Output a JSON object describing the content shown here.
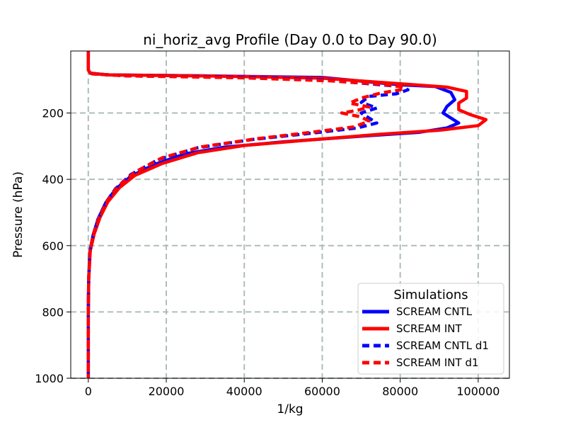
{
  "chart_data": {
    "type": "line",
    "title": "ni_horiz_avg Profile (Day 0.0 to Day 90.0)",
    "xlabel": "1/kg",
    "ylabel": "Pressure (hPa)",
    "xlim": [
      -4500,
      108000
    ],
    "ylim": [
      1000,
      13
    ],
    "y_inverted": true,
    "grid": true,
    "xticks": [
      0,
      20000,
      40000,
      60000,
      80000,
      100000
    ],
    "xtick_labels": [
      "0",
      "20000",
      "40000",
      "60000",
      "80000",
      "100000"
    ],
    "yticks": [
      200,
      400,
      600,
      800,
      1000
    ],
    "ytick_labels": [
      "200",
      "400",
      "600",
      "800",
      "1000"
    ],
    "legend": {
      "title": "Simulations",
      "position": "lower-right"
    },
    "series": [
      {
        "name": "SCREAM CNTL",
        "color": "#0000ff",
        "style": "solid",
        "points": [
          [
            0,
            13
          ],
          [
            0,
            70
          ],
          [
            500,
            80
          ],
          [
            5000,
            85
          ],
          [
            30000,
            88
          ],
          [
            60000,
            93
          ],
          [
            80000,
            115
          ],
          [
            89000,
            120
          ],
          [
            93000,
            138
          ],
          [
            94000,
            160
          ],
          [
            92000,
            180
          ],
          [
            91000,
            200
          ],
          [
            93000,
            215
          ],
          [
            95000,
            230
          ],
          [
            92000,
            245
          ],
          [
            85000,
            258
          ],
          [
            70000,
            270
          ],
          [
            50000,
            287
          ],
          [
            35000,
            303
          ],
          [
            25000,
            323
          ],
          [
            17000,
            355
          ],
          [
            11000,
            390
          ],
          [
            7000,
            430
          ],
          [
            4500,
            470
          ],
          [
            2500,
            520
          ],
          [
            1200,
            570
          ],
          [
            400,
            620
          ],
          [
            100,
            700
          ],
          [
            0,
            800
          ],
          [
            0,
            1000
          ]
        ]
      },
      {
        "name": "SCREAM INT",
        "color": "#ff0000",
        "style": "solid",
        "points": [
          [
            0,
            13
          ],
          [
            0,
            70
          ],
          [
            500,
            80
          ],
          [
            5000,
            85
          ],
          [
            30000,
            88
          ],
          [
            60000,
            95
          ],
          [
            80000,
            112
          ],
          [
            92000,
            122
          ],
          [
            97000,
            135
          ],
          [
            97000,
            155
          ],
          [
            95000,
            170
          ],
          [
            95000,
            190
          ],
          [
            98000,
            205
          ],
          [
            102000,
            220
          ],
          [
            100000,
            238
          ],
          [
            90000,
            252
          ],
          [
            75000,
            264
          ],
          [
            55000,
            283
          ],
          [
            40000,
            298
          ],
          [
            28000,
            320
          ],
          [
            19000,
            352
          ],
          [
            12000,
            388
          ],
          [
            8000,
            425
          ],
          [
            5000,
            468
          ],
          [
            3000,
            515
          ],
          [
            1500,
            565
          ],
          [
            500,
            615
          ],
          [
            100,
            700
          ],
          [
            0,
            800
          ],
          [
            0,
            1000
          ]
        ]
      },
      {
        "name": "SCREAM CNTL d1",
        "color": "#0000ff",
        "style": "dashed",
        "points": [
          [
            0,
            13
          ],
          [
            0,
            70
          ],
          [
            1000,
            82
          ],
          [
            10000,
            88
          ],
          [
            40000,
            92
          ],
          [
            60000,
            100
          ],
          [
            72000,
            112
          ],
          [
            80000,
            120
          ],
          [
            82000,
            130
          ],
          [
            79000,
            142
          ],
          [
            72000,
            150
          ],
          [
            70000,
            168
          ],
          [
            74000,
            185
          ],
          [
            70000,
            200
          ],
          [
            72000,
            215
          ],
          [
            74000,
            230
          ],
          [
            69000,
            245
          ],
          [
            58000,
            260
          ],
          [
            42000,
            280
          ],
          [
            28000,
            305
          ],
          [
            18000,
            340
          ],
          [
            11000,
            385
          ],
          [
            7000,
            428
          ],
          [
            4500,
            470
          ],
          [
            2500,
            520
          ],
          [
            1200,
            570
          ],
          [
            400,
            620
          ],
          [
            100,
            700
          ],
          [
            0,
            800
          ],
          [
            0,
            1000
          ]
        ]
      },
      {
        "name": "SCREAM INT d1",
        "color": "#ff0000",
        "style": "dashed",
        "points": [
          [
            0,
            13
          ],
          [
            0,
            70
          ],
          [
            1000,
            82
          ],
          [
            10000,
            88
          ],
          [
            40000,
            94
          ],
          [
            62000,
            103
          ],
          [
            75000,
            113
          ],
          [
            81000,
            122
          ],
          [
            80000,
            130
          ],
          [
            75000,
            140
          ],
          [
            70000,
            155
          ],
          [
            67000,
            170
          ],
          [
            72000,
            182
          ],
          [
            69000,
            192
          ],
          [
            65000,
            200
          ],
          [
            70000,
            212
          ],
          [
            72000,
            225
          ],
          [
            68000,
            242
          ],
          [
            58000,
            257
          ],
          [
            43000,
            278
          ],
          [
            29000,
            302
          ],
          [
            19000,
            335
          ],
          [
            12000,
            378
          ],
          [
            7500,
            423
          ],
          [
            4800,
            466
          ],
          [
            2800,
            515
          ],
          [
            1300,
            565
          ],
          [
            450,
            615
          ],
          [
            100,
            700
          ],
          [
            0,
            800
          ],
          [
            0,
            1000
          ]
        ]
      }
    ]
  }
}
